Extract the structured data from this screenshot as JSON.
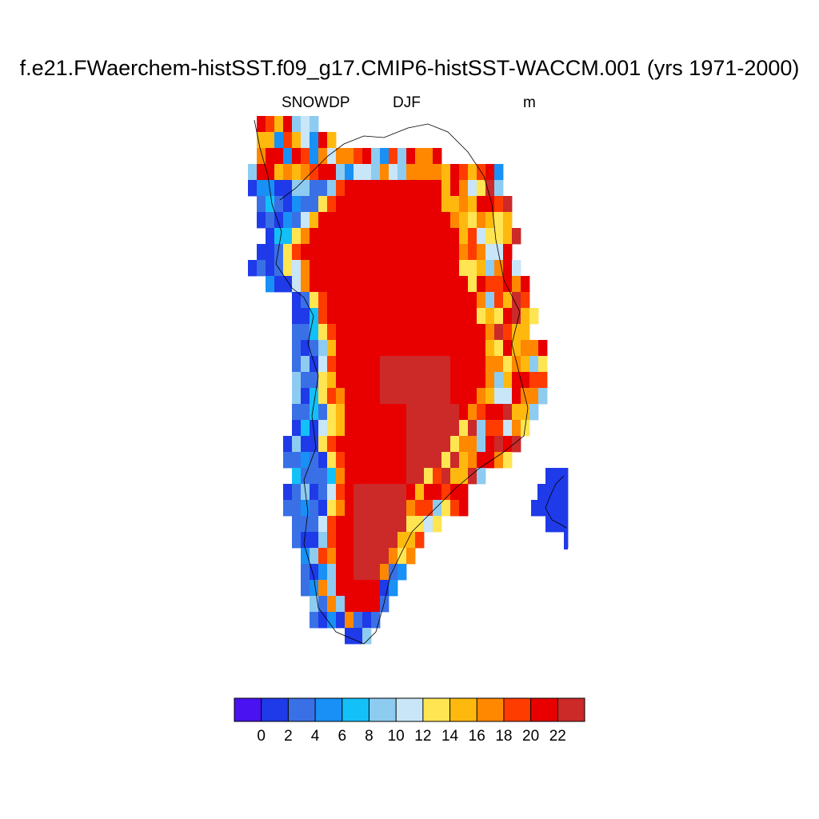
{
  "header": {
    "title": "f.e21.FWaerchem-histSST.f09_g17.CMIP6-histSST-WACCM.001 (yrs 1971-2000)",
    "variable": "SNOWDP",
    "season": "DJF",
    "units": "m"
  },
  "chart_data": {
    "type": "heatmap",
    "title": "f.e21.FWaerchem-histSST.f09_g17.CMIP6-histSST-WACCM.001 (yrs 1971-2000)",
    "variable": "SNOWDP",
    "season": "DJF",
    "units": "m",
    "region": "Greenland",
    "legend_placement": "bottom",
    "colorbar": {
      "tick_labels": [
        "0",
        "2",
        "4",
        "6",
        "8",
        "10",
        "12",
        "14",
        "16",
        "18",
        "20",
        "22"
      ],
      "levels": [
        0,
        2,
        4,
        6,
        8,
        10,
        12,
        14,
        16,
        18,
        20,
        22
      ],
      "colors": [
        "#4a12f0",
        "#1f3ae8",
        "#3a70e6",
        "#1890f5",
        "#14c0f8",
        "#8ecbf0",
        "#c8e6f8",
        "#ffe552",
        "#ffb90e",
        "#ff8800",
        "#ff3c00",
        "#e80000",
        "#cc2929"
      ]
    }
  }
}
